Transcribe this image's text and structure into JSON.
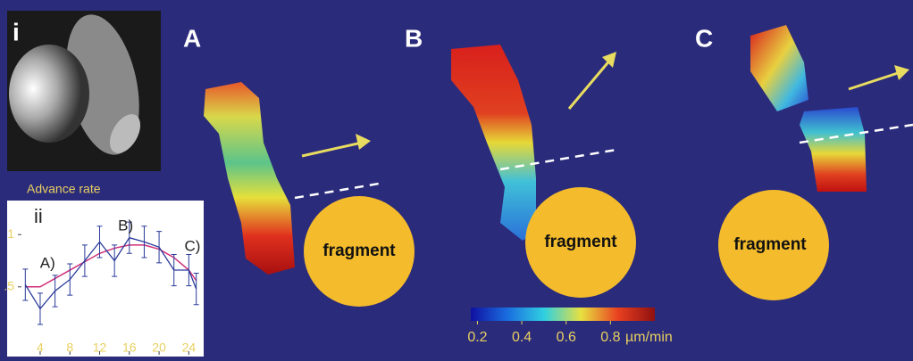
{
  "panels": {
    "i": "i",
    "ii": "ii",
    "A": "A",
    "B": "B",
    "C": "C"
  },
  "fragments": [
    "fragment",
    "fragment",
    "fragment"
  ],
  "colorbar": {
    "ticks": [
      0.2,
      0.4,
      0.6,
      0.8
    ],
    "unit": "µm/min",
    "range": [
      0.17,
      1.0
    ]
  },
  "chart_data": {
    "type": "line",
    "title": "Advance rate",
    "x": [
      2,
      4,
      6,
      8,
      10,
      12,
      14,
      16,
      18,
      20,
      22,
      24,
      25
    ],
    "values": [
      0.52,
      0.29,
      0.46,
      0.57,
      0.75,
      0.93,
      0.75,
      0.97,
      0.93,
      0.88,
      0.66,
      0.66,
      0.48
    ],
    "errors": [
      0.15,
      0.15,
      0.15,
      0.15,
      0.15,
      0.15,
      0.15,
      0.15,
      0.15,
      0.15,
      0.15,
      0.15,
      0.15
    ],
    "fit": [
      0.5,
      0.5,
      0.58,
      0.66,
      0.74,
      0.82,
      0.87,
      0.9,
      0.9,
      0.86,
      0.78,
      0.66,
      0.56
    ],
    "color": "#2a3a9a",
    "fit_color": "#d0307a",
    "xlim": [
      1,
      26
    ],
    "ylim": [
      -0.15,
      1.3
    ],
    "xticks": [
      4,
      8,
      12,
      16,
      20,
      24
    ],
    "yticks": [
      1,
      {
        "value": 0.5,
        "label": ".5"
      }
    ],
    "annotations": [
      {
        "text": "A)",
        "x": 5,
        "y": 0.72
      },
      {
        "text": "B)",
        "x": 15.5,
        "y": 1.08
      },
      {
        "text": "C)",
        "x": 24.5,
        "y": 0.88
      }
    ]
  }
}
